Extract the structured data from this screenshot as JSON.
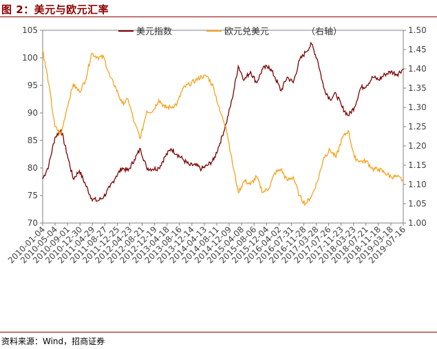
{
  "header": {
    "title": "图 2：美元与欧元汇率"
  },
  "footer": {
    "source": "资料来源：Wind，招商证券"
  },
  "colors": {
    "dxy": "#7b0000",
    "eurusd": "#f5a21b",
    "accent": "#8b0000"
  },
  "chart_data": {
    "type": "line",
    "title": "",
    "legend_placement": "top-center",
    "x_tick_labels": [
      "2010-01-04",
      "2010-05-04",
      "2010-09-01",
      "2010-12-30",
      "2011-04-29",
      "2011-08-27",
      "2011-12-25",
      "2012-04-23",
      "2012-08-21",
      "2012-12-19",
      "2013-04-18",
      "2013-08-16",
      "2013-12-14",
      "2014-04-13",
      "2014-08-11",
      "2014-12-09",
      "2015-04-08",
      "2015-08-06",
      "2015-12-04",
      "2016-04-02",
      "2016-07-31",
      "2016-11-28",
      "2017-03-28",
      "2017-07-26",
      "2017-11-23",
      "2018-03-23",
      "2018-07-21",
      "2018-11-18",
      "2019-03-18",
      "2019-07-16"
    ],
    "y_left": {
      "ticks": [
        70,
        75,
        80,
        85,
        90,
        95,
        100,
        105
      ],
      "ylim": [
        70,
        105
      ]
    },
    "y_right": {
      "label": "右轴",
      "ticks": [
        "1.00",
        "1.05",
        "1.10",
        "1.15",
        "1.20",
        "1.25",
        "1.30",
        "1.35",
        "1.40",
        "1.45",
        "1.50"
      ],
      "ylim": [
        1.0,
        1.5
      ]
    },
    "x": [
      "2010-01",
      "2010-03",
      "2010-05",
      "2010-06",
      "2010-08",
      "2010-10",
      "2010-12",
      "2011-02",
      "2011-04",
      "2011-05",
      "2011-07",
      "2011-09",
      "2011-11",
      "2012-01",
      "2012-03",
      "2012-05",
      "2012-07",
      "2012-09",
      "2012-11",
      "2013-01",
      "2013-03",
      "2013-05",
      "2013-07",
      "2013-09",
      "2013-11",
      "2014-01",
      "2014-03",
      "2014-05",
      "2014-07",
      "2014-09",
      "2014-11",
      "2015-01",
      "2015-03",
      "2015-05",
      "2015-07",
      "2015-09",
      "2015-11",
      "2016-01",
      "2016-03",
      "2016-05",
      "2016-07",
      "2016-09",
      "2016-11",
      "2017-01",
      "2017-03",
      "2017-05",
      "2017-07",
      "2017-09",
      "2017-11",
      "2018-01",
      "2018-03",
      "2018-05",
      "2018-07",
      "2018-09",
      "2018-11",
      "2019-01",
      "2019-03",
      "2019-05",
      "2019-07",
      "2019-08"
    ],
    "series": [
      {
        "name": "美元指数",
        "axis": "left",
        "values": [
          78.0,
          80.5,
          85.5,
          87.0,
          82.5,
          78.0,
          79.5,
          77.0,
          74.5,
          74.0,
          74.8,
          76.5,
          78.5,
          80.0,
          79.5,
          81.5,
          83.5,
          80.0,
          79.8,
          80.0,
          82.0,
          83.5,
          82.5,
          81.5,
          80.5,
          80.5,
          79.8,
          80.5,
          81.5,
          84.5,
          88.0,
          92.5,
          98.5,
          96.0,
          97.5,
          95.5,
          98.0,
          98.5,
          96.5,
          94.0,
          96.5,
          95.5,
          99.5,
          101.0,
          102.5,
          99.5,
          94.5,
          92.5,
          93.5,
          91.0,
          89.5,
          91.0,
          94.5,
          95.0,
          96.5,
          96.0,
          97.0,
          97.5,
          97.0,
          98.0
        ]
      },
      {
        "name": "欧元兑美元",
        "axis": "right",
        "values": [
          1.45,
          1.36,
          1.25,
          1.23,
          1.3,
          1.36,
          1.34,
          1.37,
          1.44,
          1.43,
          1.43,
          1.38,
          1.35,
          1.31,
          1.32,
          1.26,
          1.22,
          1.29,
          1.29,
          1.32,
          1.3,
          1.3,
          1.31,
          1.35,
          1.36,
          1.37,
          1.38,
          1.38,
          1.35,
          1.29,
          1.25,
          1.16,
          1.08,
          1.11,
          1.1,
          1.12,
          1.08,
          1.09,
          1.13,
          1.14,
          1.11,
          1.12,
          1.07,
          1.05,
          1.07,
          1.11,
          1.17,
          1.19,
          1.17,
          1.22,
          1.24,
          1.17,
          1.16,
          1.16,
          1.14,
          1.14,
          1.13,
          1.12,
          1.12,
          1.11
        ]
      }
    ]
  }
}
